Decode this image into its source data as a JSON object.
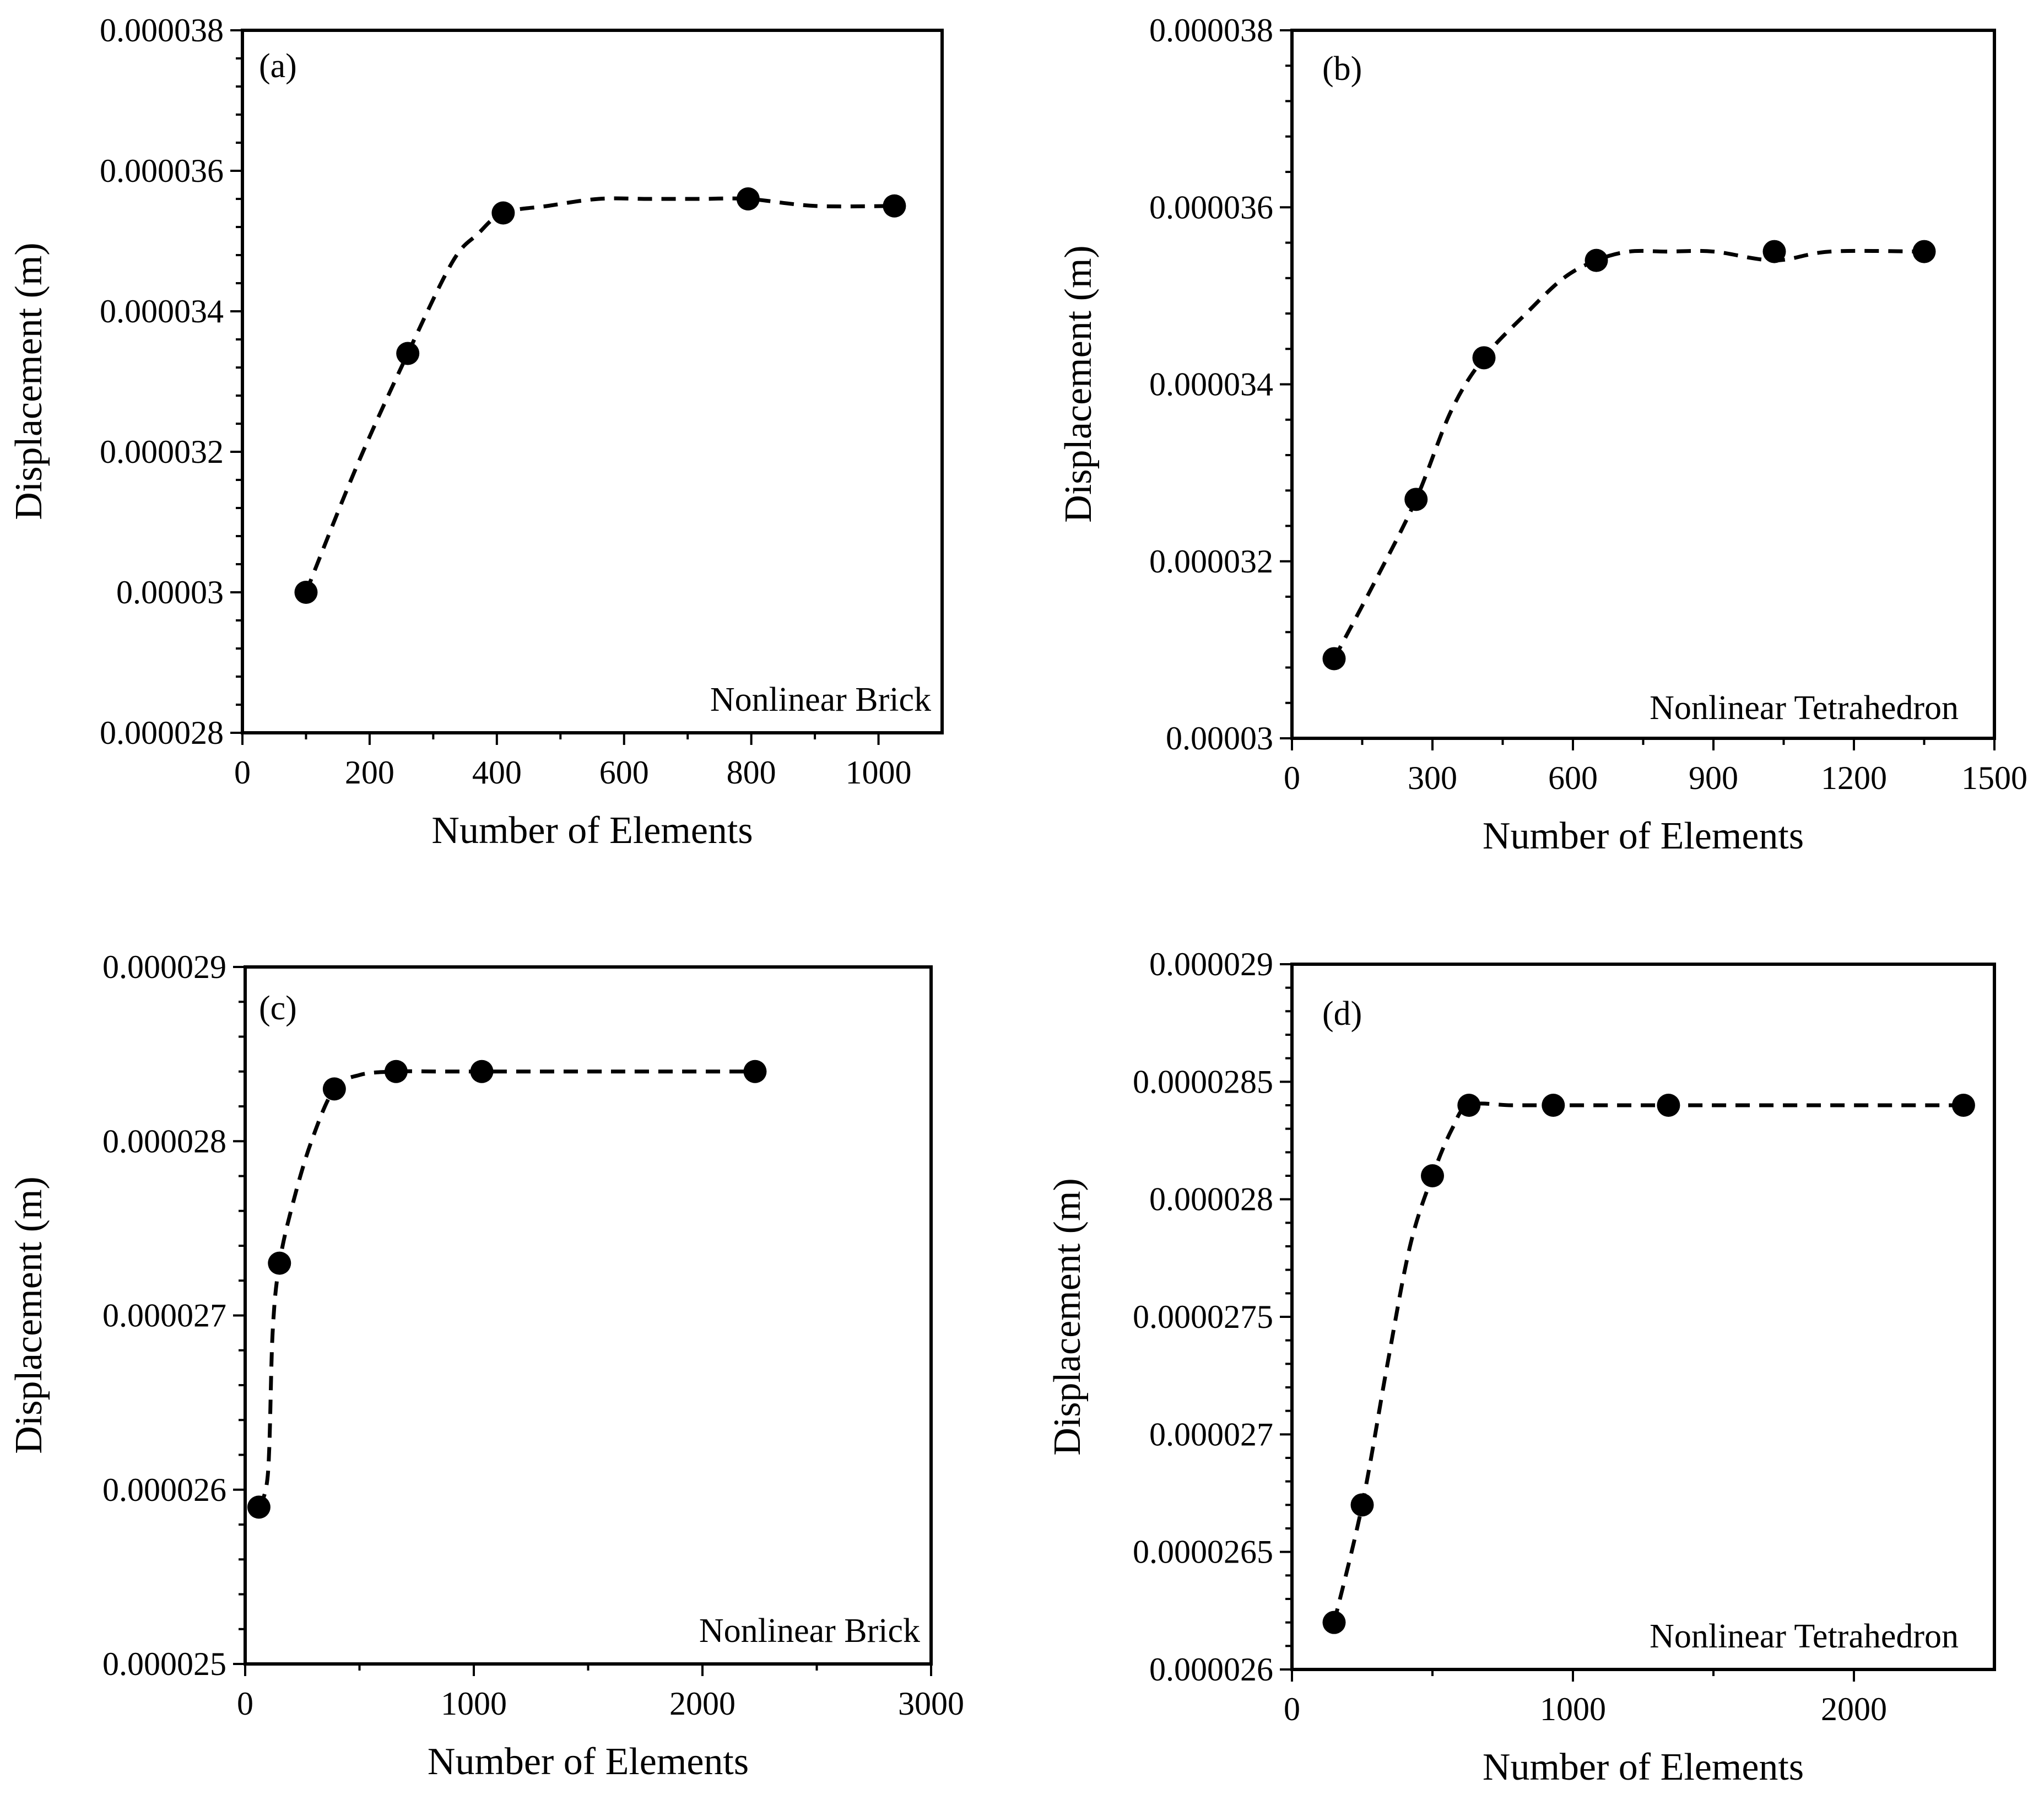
{
  "chart_data": [
    {
      "type": "scatter",
      "panel_label": "(a)",
      "annotation": "Nonlinear Brick",
      "xlabel": "Number of Elements",
      "ylabel": "Displacement (m)",
      "xlim": [
        0,
        1100
      ],
      "ylim": [
        2.8e-05,
        3.8e-05
      ],
      "xticks": [
        0,
        200,
        400,
        600,
        800,
        1000
      ],
      "xtick_labels": [
        "0",
        "200",
        "400",
        "600",
        "800",
        "1000"
      ],
      "yticks": [
        2.8e-05,
        3e-05,
        3.2e-05,
        3.4e-05,
        3.6e-05,
        3.8e-05
      ],
      "ytick_labels": [
        "0.000028",
        "0.00003",
        "0.000032",
        "0.000034",
        "0.000036",
        "0.000038"
      ],
      "x": [
        100,
        260,
        410,
        795,
        1025
      ],
      "y": [
        3e-05,
        3.34e-05,
        3.54e-05,
        3.56e-05,
        3.55e-05
      ],
      "trend": {
        "style": "dashed",
        "x": [
          100,
          180,
          260,
          330,
          370,
          410,
          480,
          560,
          640,
          720,
          795,
          900,
          1025
        ],
        "y": [
          3e-05,
          3.18e-05,
          3.34e-05,
          3.47e-05,
          3.51e-05,
          3.54e-05,
          3.55e-05,
          3.56e-05,
          3.56e-05,
          3.56e-05,
          3.56e-05,
          3.55e-05,
          3.55e-05
        ]
      }
    },
    {
      "type": "scatter",
      "panel_label": "(b)",
      "annotation": "Nonlinear Tetrahedron",
      "xlabel": "Number of Elements",
      "ylabel": "Displacement (m)",
      "xlim": [
        0,
        1500
      ],
      "ylim": [
        3e-05,
        3.8e-05
      ],
      "xticks": [
        0,
        300,
        600,
        900,
        1200,
        1500
      ],
      "xtick_labels": [
        "0",
        "300",
        "600",
        "900",
        "1200",
        "1500"
      ],
      "yticks": [
        3e-05,
        3.2e-05,
        3.4e-05,
        3.6e-05,
        3.8e-05
      ],
      "ytick_labels": [
        "0.00003",
        "0.000032",
        "0.000034",
        "0.000036",
        "0.000038"
      ],
      "x": [
        90,
        265,
        410,
        650,
        1030,
        1350
      ],
      "y": [
        3.09e-05,
        3.27e-05,
        3.43e-05,
        3.54e-05,
        3.55e-05,
        3.55e-05
      ],
      "trend": {
        "style": "dashed",
        "x": [
          90,
          180,
          265,
          340,
          410,
          500,
          580,
          650,
          720,
          800,
          900,
          1030,
          1150,
          1350
        ],
        "y": [
          3.09e-05,
          3.18e-05,
          3.27e-05,
          3.37e-05,
          3.43e-05,
          3.48e-05,
          3.52e-05,
          3.54e-05,
          3.55e-05,
          3.55e-05,
          3.55e-05,
          3.54e-05,
          3.55e-05,
          3.55e-05
        ]
      }
    },
    {
      "type": "scatter",
      "panel_label": "(c)",
      "annotation": "Nonlinear Brick",
      "xlabel": "Number of Elements",
      "ylabel": "Displacement (m)",
      "xlim": [
        0,
        3000
      ],
      "ylim": [
        2.5e-05,
        2.9e-05
      ],
      "xticks": [
        0,
        1000,
        2000,
        3000
      ],
      "xtick_labels": [
        "0",
        "1000",
        "2000",
        "3000"
      ],
      "yticks": [
        2.5e-05,
        2.6e-05,
        2.7e-05,
        2.8e-05,
        2.9e-05
      ],
      "ytick_labels": [
        "0.000025",
        "0.000026",
        "0.000027",
        "0.000028",
        "0.000029"
      ],
      "x": [
        60,
        150,
        390,
        660,
        1035,
        2230
      ],
      "y": [
        2.59e-05,
        2.73e-05,
        2.83e-05,
        2.84e-05,
        2.84e-05,
        2.84e-05
      ],
      "trend": {
        "style": "dashed",
        "x": [
          60,
          100,
          120,
          150,
          210,
          290,
          390,
          500,
          660,
          850,
          1035,
          1600,
          2230
        ],
        "y": [
          2.59e-05,
          2.61e-05,
          2.69e-05,
          2.73e-05,
          2.765e-05,
          2.8e-05,
          2.83e-05,
          2.838e-05,
          2.84e-05,
          2.84e-05,
          2.84e-05,
          2.84e-05,
          2.84e-05
        ]
      }
    },
    {
      "type": "scatter",
      "panel_label": "(d)",
      "annotation": "Nonlinear Tetrahedron",
      "xlabel": "Number of Elements",
      "ylabel": "Displacement (m)",
      "xlim": [
        0,
        2500
      ],
      "ylim": [
        2.6e-05,
        2.9e-05
      ],
      "xticks": [
        0,
        1000,
        2000
      ],
      "xtick_labels": [
        "0",
        "1000",
        "2000"
      ],
      "yticks": [
        2.6e-05,
        2.65e-05,
        2.7e-05,
        2.75e-05,
        2.8e-05,
        2.85e-05,
        2.9e-05
      ],
      "ytick_labels": [
        "0.000026",
        "0.0000265",
        "0.000027",
        "0.0000275",
        "0.000028",
        "0.0000285",
        "0.000029"
      ],
      "x": [
        150,
        250,
        500,
        630,
        930,
        1340,
        2390
      ],
      "y": [
        2.62e-05,
        2.67e-05,
        2.81e-05,
        2.84e-05,
        2.84e-05,
        2.84e-05,
        2.84e-05
      ],
      "trend": {
        "style": "dashed",
        "x": [
          150,
          250,
          340,
          420,
          500,
          570,
          630,
          780,
          930,
          1100,
          1340,
          1800,
          2390
        ],
        "y": [
          2.62e-05,
          2.67e-05,
          2.73e-05,
          2.78e-05,
          2.81e-05,
          2.83e-05,
          2.84e-05,
          2.84e-05,
          2.84e-05,
          2.84e-05,
          2.84e-05,
          2.84e-05,
          2.84e-05
        ]
      }
    }
  ]
}
